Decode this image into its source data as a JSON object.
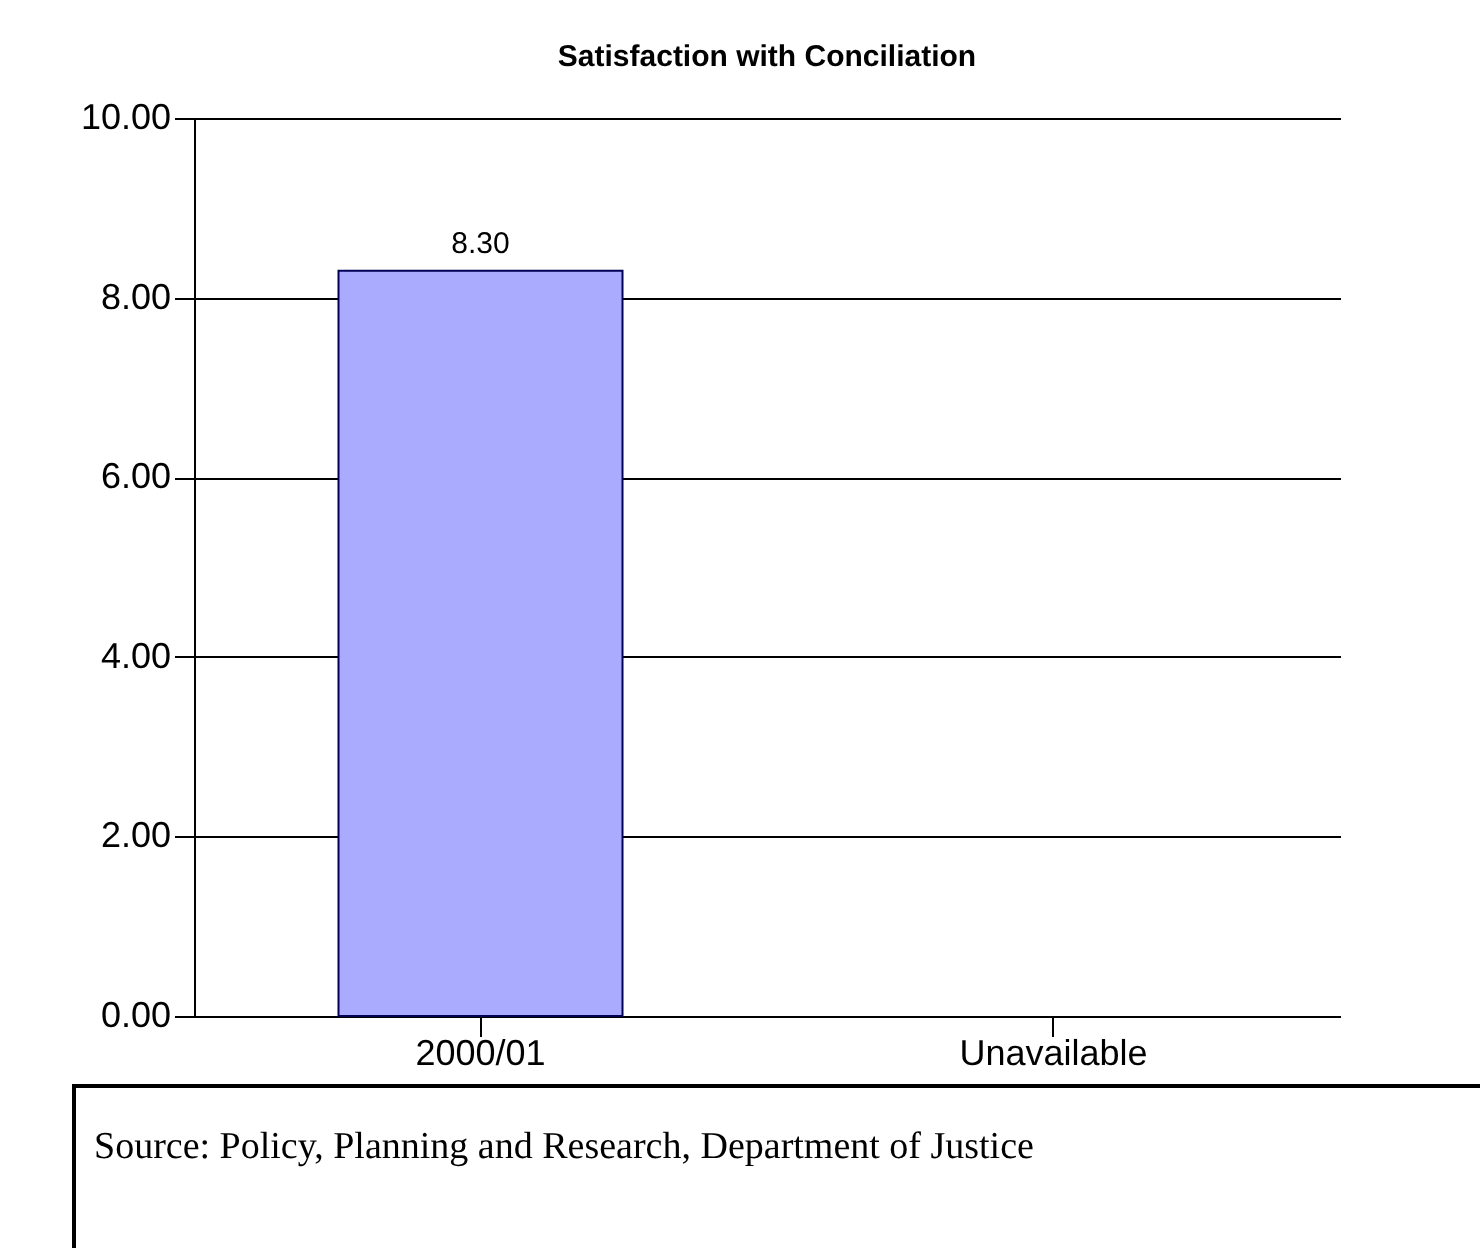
{
  "chart_data": {
    "type": "bar",
    "title": "Satisfaction with Conciliation",
    "categories": [
      "2000/01",
      "Unavailable"
    ],
    "values": [
      8.3,
      null
    ],
    "value_labels": [
      "8.30",
      null
    ],
    "color": "#aaaaff",
    "ylim": [
      0,
      10
    ],
    "yticks": [
      {
        "value": 0,
        "label": "0.00"
      },
      {
        "value": 2,
        "label": "2.00"
      },
      {
        "value": 4,
        "label": "4.00"
      },
      {
        "value": 6,
        "label": "6.00"
      },
      {
        "value": 8,
        "label": "8.00"
      },
      {
        "value": 10,
        "label": "10.00"
      }
    ],
    "grid": "y",
    "annotations": [
      "Source: Policy, Planning and Research, Department of Justice"
    ]
  }
}
